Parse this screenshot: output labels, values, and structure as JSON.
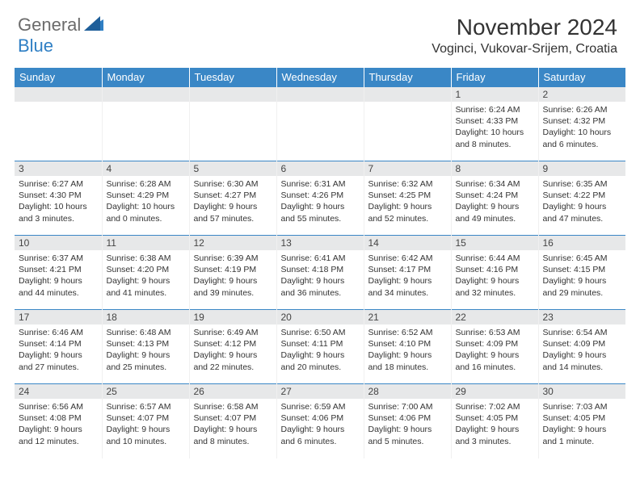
{
  "logo": {
    "general": "General",
    "blue": "Blue"
  },
  "title": "November 2024",
  "location": "Voginci, Vukovar-Srijem, Croatia",
  "colors": {
    "header_bg": "#3a87c6",
    "header_text": "#ffffff",
    "daynum_bg": "#e7e8e9",
    "cell_border_top": "#3a87c6",
    "logo_gray": "#6b6b6b",
    "logo_blue": "#2f7fc4"
  },
  "weekdays": [
    "Sunday",
    "Monday",
    "Tuesday",
    "Wednesday",
    "Thursday",
    "Friday",
    "Saturday"
  ],
  "weeks": [
    [
      null,
      null,
      null,
      null,
      null,
      {
        "n": "1",
        "sr": "6:24 AM",
        "ss": "4:33 PM",
        "dl": "10 hours and 8 minutes."
      },
      {
        "n": "2",
        "sr": "6:26 AM",
        "ss": "4:32 PM",
        "dl": "10 hours and 6 minutes."
      }
    ],
    [
      {
        "n": "3",
        "sr": "6:27 AM",
        "ss": "4:30 PM",
        "dl": "10 hours and 3 minutes."
      },
      {
        "n": "4",
        "sr": "6:28 AM",
        "ss": "4:29 PM",
        "dl": "10 hours and 0 minutes."
      },
      {
        "n": "5",
        "sr": "6:30 AM",
        "ss": "4:27 PM",
        "dl": "9 hours and 57 minutes."
      },
      {
        "n": "6",
        "sr": "6:31 AM",
        "ss": "4:26 PM",
        "dl": "9 hours and 55 minutes."
      },
      {
        "n": "7",
        "sr": "6:32 AM",
        "ss": "4:25 PM",
        "dl": "9 hours and 52 minutes."
      },
      {
        "n": "8",
        "sr": "6:34 AM",
        "ss": "4:24 PM",
        "dl": "9 hours and 49 minutes."
      },
      {
        "n": "9",
        "sr": "6:35 AM",
        "ss": "4:22 PM",
        "dl": "9 hours and 47 minutes."
      }
    ],
    [
      {
        "n": "10",
        "sr": "6:37 AM",
        "ss": "4:21 PM",
        "dl": "9 hours and 44 minutes."
      },
      {
        "n": "11",
        "sr": "6:38 AM",
        "ss": "4:20 PM",
        "dl": "9 hours and 41 minutes."
      },
      {
        "n": "12",
        "sr": "6:39 AM",
        "ss": "4:19 PM",
        "dl": "9 hours and 39 minutes."
      },
      {
        "n": "13",
        "sr": "6:41 AM",
        "ss": "4:18 PM",
        "dl": "9 hours and 36 minutes."
      },
      {
        "n": "14",
        "sr": "6:42 AM",
        "ss": "4:17 PM",
        "dl": "9 hours and 34 minutes."
      },
      {
        "n": "15",
        "sr": "6:44 AM",
        "ss": "4:16 PM",
        "dl": "9 hours and 32 minutes."
      },
      {
        "n": "16",
        "sr": "6:45 AM",
        "ss": "4:15 PM",
        "dl": "9 hours and 29 minutes."
      }
    ],
    [
      {
        "n": "17",
        "sr": "6:46 AM",
        "ss": "4:14 PM",
        "dl": "9 hours and 27 minutes."
      },
      {
        "n": "18",
        "sr": "6:48 AM",
        "ss": "4:13 PM",
        "dl": "9 hours and 25 minutes."
      },
      {
        "n": "19",
        "sr": "6:49 AM",
        "ss": "4:12 PM",
        "dl": "9 hours and 22 minutes."
      },
      {
        "n": "20",
        "sr": "6:50 AM",
        "ss": "4:11 PM",
        "dl": "9 hours and 20 minutes."
      },
      {
        "n": "21",
        "sr": "6:52 AM",
        "ss": "4:10 PM",
        "dl": "9 hours and 18 minutes."
      },
      {
        "n": "22",
        "sr": "6:53 AM",
        "ss": "4:09 PM",
        "dl": "9 hours and 16 minutes."
      },
      {
        "n": "23",
        "sr": "6:54 AM",
        "ss": "4:09 PM",
        "dl": "9 hours and 14 minutes."
      }
    ],
    [
      {
        "n": "24",
        "sr": "6:56 AM",
        "ss": "4:08 PM",
        "dl": "9 hours and 12 minutes."
      },
      {
        "n": "25",
        "sr": "6:57 AM",
        "ss": "4:07 PM",
        "dl": "9 hours and 10 minutes."
      },
      {
        "n": "26",
        "sr": "6:58 AM",
        "ss": "4:07 PM",
        "dl": "9 hours and 8 minutes."
      },
      {
        "n": "27",
        "sr": "6:59 AM",
        "ss": "4:06 PM",
        "dl": "9 hours and 6 minutes."
      },
      {
        "n": "28",
        "sr": "7:00 AM",
        "ss": "4:06 PM",
        "dl": "9 hours and 5 minutes."
      },
      {
        "n": "29",
        "sr": "7:02 AM",
        "ss": "4:05 PM",
        "dl": "9 hours and 3 minutes."
      },
      {
        "n": "30",
        "sr": "7:03 AM",
        "ss": "4:05 PM",
        "dl": "9 hours and 1 minute."
      }
    ]
  ],
  "labels": {
    "sunrise": "Sunrise:",
    "sunset": "Sunset:",
    "daylight": "Daylight:"
  }
}
